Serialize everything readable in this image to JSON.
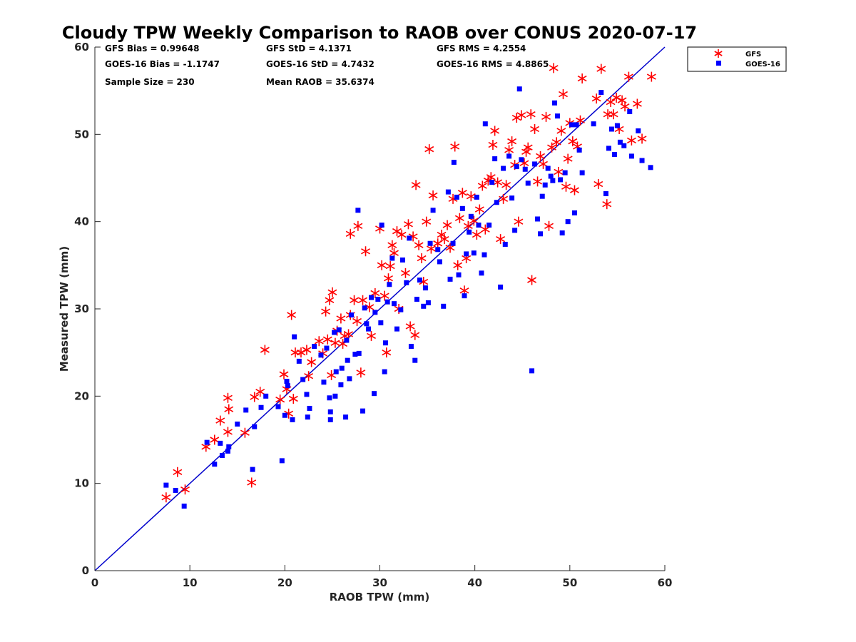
{
  "chart_data": {
    "type": "scatter",
    "title": "Cloudy TPW Weekly Comparison to RAOB over CONUS 2020-07-17",
    "xlabel": "RAOB TPW (mm)",
    "ylabel": "Measured TPW (mm)",
    "xlim": [
      0,
      60
    ],
    "ylim": [
      0,
      60
    ],
    "xticks": [
      "0",
      "10",
      "20",
      "30",
      "40",
      "50",
      "60"
    ],
    "yticks": [
      "0",
      "10",
      "20",
      "30",
      "40",
      "50",
      "60"
    ],
    "grid": false,
    "legend_position": "outside-top-right",
    "reference_line": {
      "x": [
        0,
        60
      ],
      "y": [
        0,
        60
      ],
      "color": "#0000cc"
    },
    "stats": {
      "gfs_bias": "GFS Bias = 0.99648",
      "gfs_std": "GFS StD = 4.1371",
      "gfs_rms": "GFS RMS = 4.2554",
      "goes_bias": "GOES-16 Bias = -1.1747",
      "goes_std": "GOES-16 StD = 4.7432",
      "goes_rms": "GOES-16 RMS = 4.8865",
      "sample_size": "Sample Size = 230",
      "mean_raob": "Mean RAOB = 35.6374"
    },
    "series": [
      {
        "name": "GFS",
        "color": "#ff0000",
        "marker": "asterisk",
        "points": [
          [
            7.5,
            8.4
          ],
          [
            8.7,
            11.3
          ],
          [
            9.5,
            9.3
          ],
          [
            11.7,
            14.2
          ],
          [
            12.6,
            15.0
          ],
          [
            13.2,
            17.2
          ],
          [
            14.0,
            19.8
          ],
          [
            14.1,
            18.5
          ],
          [
            14.0,
            15.9
          ],
          [
            15.8,
            15.8
          ],
          [
            16.5,
            10.1
          ],
          [
            16.8,
            19.9
          ],
          [
            17.4,
            20.5
          ],
          [
            17.9,
            25.3
          ],
          [
            19.5,
            19.6
          ],
          [
            19.9,
            22.5
          ],
          [
            20.2,
            20.8
          ],
          [
            20.4,
            18.0
          ],
          [
            20.7,
            29.3
          ],
          [
            20.9,
            19.7
          ],
          [
            21.1,
            25.0
          ],
          [
            21.7,
            25.0
          ],
          [
            22.3,
            25.3
          ],
          [
            22.5,
            22.3
          ],
          [
            22.8,
            23.9
          ],
          [
            23.6,
            26.3
          ],
          [
            24.0,
            24.9
          ],
          [
            24.3,
            29.7
          ],
          [
            24.5,
            26.5
          ],
          [
            24.7,
            31.0
          ],
          [
            24.9,
            22.4
          ],
          [
            25.0,
            31.9
          ],
          [
            25.3,
            26.1
          ],
          [
            25.5,
            27.5
          ],
          [
            25.9,
            28.9
          ],
          [
            26.1,
            26.0
          ],
          [
            26.3,
            26.9
          ],
          [
            26.7,
            27.1
          ],
          [
            26.9,
            29.3
          ],
          [
            26.9,
            38.6
          ],
          [
            27.3,
            31.0
          ],
          [
            27.6,
            28.6
          ],
          [
            27.7,
            39.5
          ],
          [
            28.0,
            22.7
          ],
          [
            28.2,
            31.0
          ],
          [
            28.5,
            36.6
          ],
          [
            28.9,
            30.2
          ],
          [
            29.1,
            26.9
          ],
          [
            29.5,
            31.8
          ],
          [
            30.0,
            39.2
          ],
          [
            30.2,
            35.0
          ],
          [
            30.5,
            31.5
          ],
          [
            30.7,
            25.0
          ],
          [
            30.9,
            33.5
          ],
          [
            31.1,
            34.9
          ],
          [
            31.3,
            37.3
          ],
          [
            31.5,
            36.4
          ],
          [
            31.8,
            38.9
          ],
          [
            32.0,
            30.0
          ],
          [
            32.3,
            38.5
          ],
          [
            32.7,
            34.1
          ],
          [
            33.0,
            39.7
          ],
          [
            33.2,
            28.0
          ],
          [
            33.5,
            38.3
          ],
          [
            33.7,
            27.0
          ],
          [
            33.8,
            44.2
          ],
          [
            34.1,
            37.3
          ],
          [
            34.4,
            35.8
          ],
          [
            34.6,
            33.1
          ],
          [
            34.9,
            40.0
          ],
          [
            35.2,
            48.3
          ],
          [
            35.4,
            36.9
          ],
          [
            35.6,
            43.0
          ],
          [
            36.1,
            37.5
          ],
          [
            36.5,
            38.5
          ],
          [
            36.8,
            38.0
          ],
          [
            37.1,
            39.6
          ],
          [
            37.4,
            37.0
          ],
          [
            37.7,
            42.6
          ],
          [
            37.9,
            48.6
          ],
          [
            38.2,
            35.0
          ],
          [
            38.4,
            40.4
          ],
          [
            38.7,
            43.3
          ],
          [
            38.9,
            32.1
          ],
          [
            39.1,
            35.8
          ],
          [
            39.3,
            39.5
          ],
          [
            39.6,
            42.9
          ],
          [
            39.9,
            40.1
          ],
          [
            40.2,
            38.5
          ],
          [
            40.5,
            41.4
          ],
          [
            40.8,
            44.1
          ],
          [
            41.1,
            39.1
          ],
          [
            41.4,
            44.7
          ],
          [
            41.7,
            45.1
          ],
          [
            41.9,
            48.8
          ],
          [
            42.1,
            50.4
          ],
          [
            42.4,
            44.5
          ],
          [
            42.7,
            38.0
          ],
          [
            43.0,
            42.6
          ],
          [
            43.3,
            44.2
          ],
          [
            43.6,
            48.2
          ],
          [
            43.9,
            49.2
          ],
          [
            44.2,
            46.5
          ],
          [
            44.4,
            51.9
          ],
          [
            44.6,
            40.0
          ],
          [
            44.9,
            52.2
          ],
          [
            45.2,
            46.7
          ],
          [
            45.4,
            48.0
          ],
          [
            45.6,
            48.5
          ],
          [
            45.9,
            52.3
          ],
          [
            46.0,
            33.3
          ],
          [
            46.3,
            50.6
          ],
          [
            46.6,
            44.6
          ],
          [
            46.9,
            47.5
          ],
          [
            47.2,
            46.6
          ],
          [
            47.5,
            52.0
          ],
          [
            47.8,
            39.5
          ],
          [
            48.1,
            48.5
          ],
          [
            48.3,
            57.6
          ],
          [
            48.6,
            49.1
          ],
          [
            48.8,
            45.7
          ],
          [
            49.1,
            50.4
          ],
          [
            49.3,
            54.6
          ],
          [
            49.6,
            44.0
          ],
          [
            49.8,
            47.2
          ],
          [
            50.0,
            51.3
          ],
          [
            50.3,
            49.2
          ],
          [
            50.5,
            43.6
          ],
          [
            50.8,
            48.6
          ],
          [
            51.1,
            51.6
          ],
          [
            51.3,
            56.4
          ],
          [
            52.8,
            54.1
          ],
          [
            53.0,
            44.3
          ],
          [
            53.3,
            57.5
          ],
          [
            53.9,
            42.0
          ],
          [
            54.0,
            52.3
          ],
          [
            54.3,
            53.7
          ],
          [
            54.6,
            52.3
          ],
          [
            54.9,
            54.2
          ],
          [
            55.2,
            50.6
          ],
          [
            55.5,
            53.9
          ],
          [
            55.8,
            53.2
          ],
          [
            56.2,
            56.6
          ],
          [
            56.5,
            49.3
          ],
          [
            57.1,
            53.5
          ],
          [
            57.6,
            49.5
          ],
          [
            58.6,
            56.6
          ]
        ]
      },
      {
        "name": "GOES-16",
        "color": "#0000ff",
        "marker": "square",
        "points": [
          [
            7.5,
            9.8
          ],
          [
            8.5,
            9.2
          ],
          [
            9.4,
            7.4
          ],
          [
            11.8,
            14.7
          ],
          [
            12.6,
            12.2
          ],
          [
            13.2,
            14.6
          ],
          [
            13.4,
            13.2
          ],
          [
            14.0,
            13.7
          ],
          [
            14.1,
            14.2
          ],
          [
            15.0,
            16.8
          ],
          [
            15.9,
            18.4
          ],
          [
            16.6,
            11.6
          ],
          [
            16.8,
            16.5
          ],
          [
            17.5,
            18.7
          ],
          [
            18.0,
            20.0
          ],
          [
            19.3,
            18.8
          ],
          [
            19.7,
            12.6
          ],
          [
            20.0,
            17.8
          ],
          [
            20.2,
            21.7
          ],
          [
            20.3,
            21.2
          ],
          [
            20.8,
            17.3
          ],
          [
            21.0,
            26.8
          ],
          [
            21.5,
            24.0
          ],
          [
            21.9,
            21.9
          ],
          [
            22.3,
            20.2
          ],
          [
            22.4,
            17.6
          ],
          [
            22.6,
            18.6
          ],
          [
            23.1,
            25.7
          ],
          [
            23.8,
            24.7
          ],
          [
            24.1,
            21.6
          ],
          [
            24.4,
            25.5
          ],
          [
            24.7,
            19.8
          ],
          [
            24.8,
            17.3
          ],
          [
            24.8,
            18.2
          ],
          [
            25.2,
            27.3
          ],
          [
            25.3,
            20.0
          ],
          [
            25.4,
            22.8
          ],
          [
            25.7,
            27.6
          ],
          [
            25.9,
            21.3
          ],
          [
            26.0,
            23.2
          ],
          [
            26.4,
            17.6
          ],
          [
            26.5,
            26.4
          ],
          [
            26.6,
            24.1
          ],
          [
            26.8,
            22.0
          ],
          [
            27.0,
            29.3
          ],
          [
            27.4,
            24.8
          ],
          [
            27.7,
            41.3
          ],
          [
            27.8,
            24.9
          ],
          [
            28.2,
            18.3
          ],
          [
            28.4,
            30.1
          ],
          [
            28.6,
            28.3
          ],
          [
            28.8,
            27.7
          ],
          [
            29.1,
            31.3
          ],
          [
            29.4,
            20.3
          ],
          [
            29.5,
            29.6
          ],
          [
            29.8,
            31.1
          ],
          [
            30.1,
            28.4
          ],
          [
            30.2,
            39.6
          ],
          [
            30.5,
            22.8
          ],
          [
            30.6,
            26.1
          ],
          [
            30.8,
            30.8
          ],
          [
            31.0,
            32.8
          ],
          [
            31.3,
            35.8
          ],
          [
            31.5,
            30.6
          ],
          [
            31.8,
            27.7
          ],
          [
            32.2,
            29.9
          ],
          [
            32.4,
            35.6
          ],
          [
            32.8,
            33.0
          ],
          [
            33.1,
            38.1
          ],
          [
            33.3,
            25.7
          ],
          [
            33.7,
            24.1
          ],
          [
            33.9,
            31.1
          ],
          [
            34.2,
            33.3
          ],
          [
            34.6,
            30.3
          ],
          [
            34.8,
            32.4
          ],
          [
            35.1,
            30.7
          ],
          [
            35.3,
            37.5
          ],
          [
            35.6,
            41.3
          ],
          [
            36.1,
            36.8
          ],
          [
            36.3,
            35.4
          ],
          [
            36.7,
            30.3
          ],
          [
            37.2,
            43.4
          ],
          [
            37.4,
            33.4
          ],
          [
            37.7,
            37.5
          ],
          [
            37.8,
            46.8
          ],
          [
            38.1,
            42.8
          ],
          [
            38.3,
            33.9
          ],
          [
            38.7,
            41.5
          ],
          [
            38.9,
            31.5
          ],
          [
            39.1,
            36.3
          ],
          [
            39.4,
            38.8
          ],
          [
            39.6,
            40.6
          ],
          [
            39.9,
            36.4
          ],
          [
            40.2,
            42.8
          ],
          [
            40.4,
            39.6
          ],
          [
            40.7,
            34.1
          ],
          [
            41.0,
            36.2
          ],
          [
            41.1,
            51.2
          ],
          [
            41.5,
            39.6
          ],
          [
            41.8,
            44.5
          ],
          [
            42.1,
            47.2
          ],
          [
            42.3,
            42.2
          ],
          [
            42.7,
            32.5
          ],
          [
            43.0,
            46.1
          ],
          [
            43.2,
            37.4
          ],
          [
            43.6,
            47.5
          ],
          [
            43.9,
            42.7
          ],
          [
            44.2,
            39.0
          ],
          [
            44.4,
            46.3
          ],
          [
            44.7,
            55.2
          ],
          [
            44.9,
            47.1
          ],
          [
            45.3,
            46.0
          ],
          [
            45.6,
            44.4
          ],
          [
            46.0,
            22.9
          ],
          [
            46.3,
            46.6
          ],
          [
            46.6,
            40.3
          ],
          [
            46.9,
            38.6
          ],
          [
            47.1,
            42.9
          ],
          [
            47.4,
            44.2
          ],
          [
            47.7,
            46.1
          ],
          [
            48.0,
            45.2
          ],
          [
            48.2,
            44.7
          ],
          [
            48.4,
            53.6
          ],
          [
            48.7,
            52.1
          ],
          [
            49.0,
            44.8
          ],
          [
            49.2,
            38.7
          ],
          [
            49.5,
            45.6
          ],
          [
            49.8,
            40.0
          ],
          [
            50.2,
            51.1
          ],
          [
            50.5,
            41.0
          ],
          [
            50.7,
            51.1
          ],
          [
            51.0,
            48.2
          ],
          [
            51.3,
            45.6
          ],
          [
            52.5,
            51.2
          ],
          [
            53.3,
            54.8
          ],
          [
            53.8,
            43.2
          ],
          [
            54.1,
            48.4
          ],
          [
            54.4,
            50.6
          ],
          [
            54.7,
            47.7
          ],
          [
            55.0,
            51.0
          ],
          [
            55.3,
            49.1
          ],
          [
            55.7,
            48.7
          ],
          [
            56.3,
            52.6
          ],
          [
            56.5,
            47.5
          ],
          [
            57.2,
            50.4
          ],
          [
            57.6,
            47.0
          ],
          [
            58.5,
            46.2
          ]
        ]
      }
    ]
  }
}
